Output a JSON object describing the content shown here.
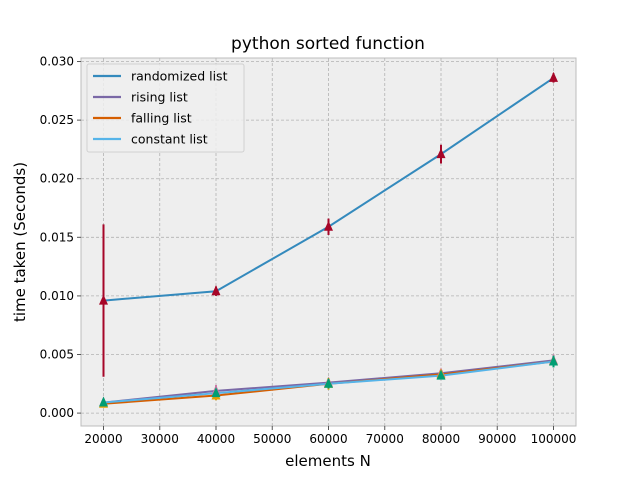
{
  "chart_data": {
    "type": "line",
    "title": "python sorted function",
    "xlabel": "elements N",
    "ylabel": "time taken (Seconds)",
    "x": [
      20000,
      40000,
      60000,
      80000,
      100000
    ],
    "xlim": [
      16000,
      104000
    ],
    "ylim": [
      -0.0011,
      0.0303
    ],
    "xticks": [
      "20000",
      "30000",
      "40000",
      "50000",
      "60000",
      "70000",
      "80000",
      "90000",
      "100000"
    ],
    "yticks": [
      "0.000",
      "0.005",
      "0.010",
      "0.015",
      "0.020",
      "0.025",
      "0.030"
    ],
    "grid": true,
    "legend_position": "top-left",
    "series": [
      {
        "name": "randomized list",
        "color": "#348abd",
        "marker_color": "#a60628",
        "values": [
          0.0096,
          0.0104,
          0.0159,
          0.0221,
          0.0286
        ],
        "err": [
          0.0065,
          0.0004,
          0.0007,
          0.0008,
          0.0004
        ]
      },
      {
        "name": "rising list",
        "color": "#7a68a6",
        "marker_color": "#cc79a7",
        "values": [
          0.0009,
          0.0019,
          0.0026,
          0.0034,
          0.0045
        ],
        "err": [
          0.0003,
          0.0005,
          0.0004,
          0.0003,
          0.0005
        ]
      },
      {
        "name": "falling list",
        "color": "#d55e00",
        "marker_color": "#e69f00",
        "values": [
          0.0008,
          0.0015,
          0.0025,
          0.0033,
          0.0044
        ],
        "err": [
          0.0003,
          0.0004,
          0.0005,
          0.0003,
          0.0004
        ]
      },
      {
        "name": "constant list",
        "color": "#56b4e9",
        "marker_color": "#009e73",
        "values": [
          0.0009,
          0.0017,
          0.0025,
          0.0032,
          0.0044
        ],
        "err": [
          0.0002,
          0.0003,
          0.0004,
          0.0003,
          0.0005
        ]
      }
    ]
  }
}
